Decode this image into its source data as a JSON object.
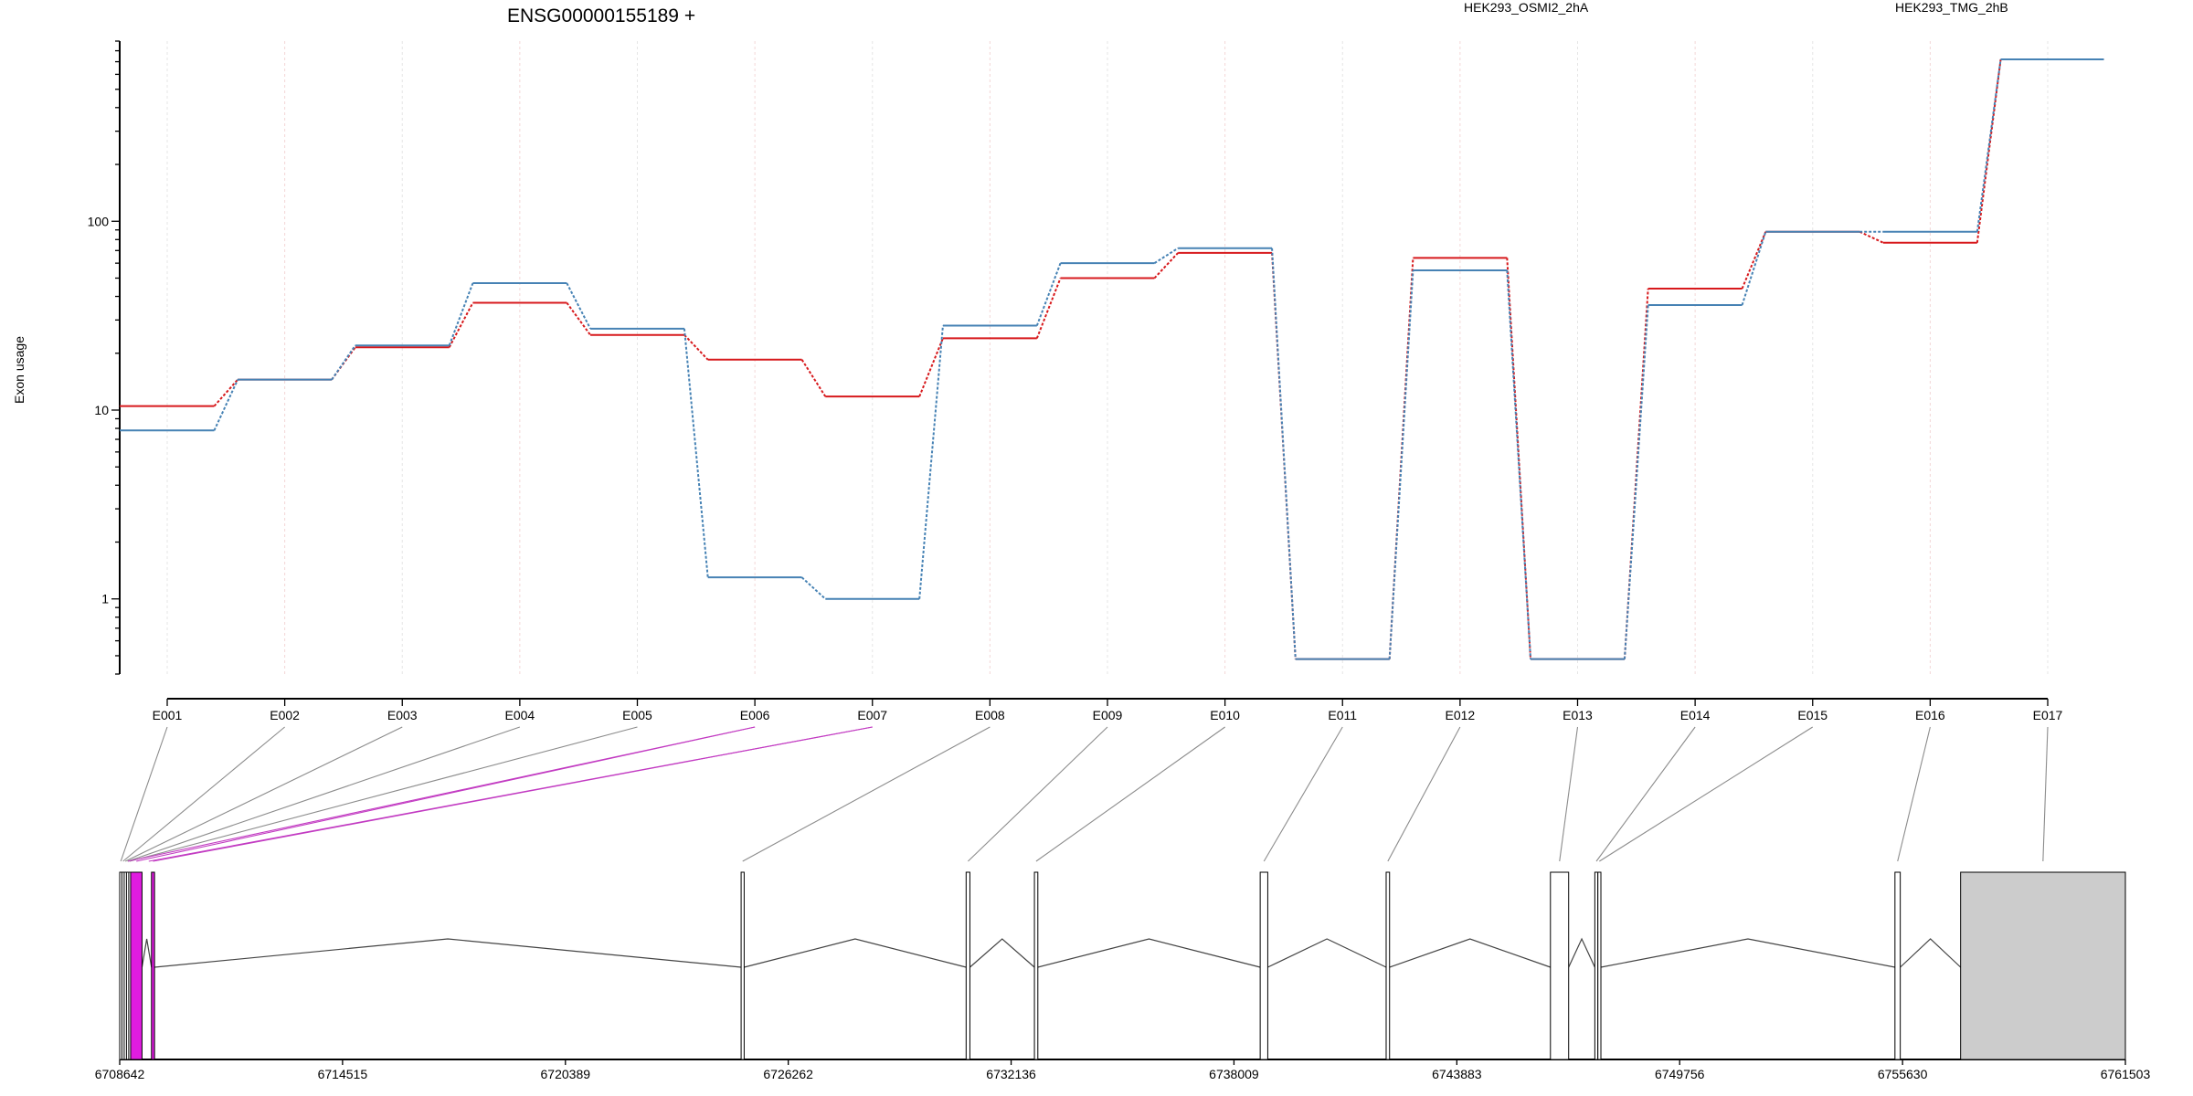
{
  "title": "ENSG00000155189 +",
  "chart_data": {
    "type": "line",
    "title": "ENSG00000155189 +",
    "ylabel": "Exon usage",
    "yscale": "log",
    "ylim": [
      0.4,
      900
    ],
    "yticks": [
      1,
      10,
      100
    ],
    "ytick_labels": [
      "1",
      "10",
      "100"
    ],
    "categories": [
      "E001",
      "E002",
      "E003",
      "E004",
      "E005",
      "E006",
      "E007",
      "E008",
      "E009",
      "E010",
      "E011",
      "E012",
      "E013",
      "E014",
      "E015",
      "E016",
      "E017"
    ],
    "legend_placement": "top",
    "series": [
      {
        "name": "HEK293_OSMI2_2hA",
        "color": "#d7191c",
        "values": [
          10.5,
          14.5,
          21.5,
          37,
          25,
          18.5,
          11.8,
          24,
          50,
          68,
          0.48,
          64,
          0.48,
          44,
          88,
          77,
          720
        ]
      },
      {
        "name": "HEK293_TMG_2hB",
        "color": "#4682b4",
        "values": [
          7.8,
          14.5,
          22,
          47,
          27,
          1.3,
          1.0,
          28,
          60,
          72,
          0.48,
          55,
          0.48,
          36,
          88,
          88,
          720
        ]
      }
    ],
    "gene_model": {
      "coord_range": [
        6708642,
        6761503
      ],
      "coord_ticks": [
        6708642,
        6714515,
        6720389,
        6726262,
        6732136,
        6738009,
        6743883,
        6749756,
        6755630,
        6761503
      ],
      "coord_tick_labels": [
        "6708642",
        "6714515",
        "6720389",
        "6726262",
        "6732136",
        "6738009",
        "6743883",
        "6749756",
        "6755630",
        "6761503"
      ],
      "highlight_color": "#e01ce0",
      "exons": [
        {
          "id": "E001",
          "start": 6708642,
          "end": 6708700,
          "highlight": false
        },
        {
          "id": "E002",
          "start": 6708700,
          "end": 6708760,
          "highlight": false
        },
        {
          "id": "E003",
          "start": 6708760,
          "end": 6708820,
          "highlight": false
        },
        {
          "id": "E004",
          "start": 6708820,
          "end": 6708880,
          "highlight": false
        },
        {
          "id": "E005",
          "start": 6708880,
          "end": 6708930,
          "highlight": false
        },
        {
          "id": "E006",
          "start": 6708930,
          "end": 6709230,
          "highlight": true
        },
        {
          "id": "E007",
          "start": 6709480,
          "end": 6709560,
          "highlight": true
        },
        {
          "id": "E008",
          "start": 6725020,
          "end": 6725100,
          "highlight": false
        },
        {
          "id": "E009",
          "start": 6730950,
          "end": 6731050,
          "highlight": false
        },
        {
          "id": "E010",
          "start": 6732750,
          "end": 6732840,
          "highlight": false
        },
        {
          "id": "E011",
          "start": 6738700,
          "end": 6738900,
          "highlight": false
        },
        {
          "id": "E012",
          "start": 6742020,
          "end": 6742110,
          "highlight": false
        },
        {
          "id": "E013",
          "start": 6746350,
          "end": 6746830,
          "highlight": false
        },
        {
          "id": "E014",
          "start": 6747520,
          "end": 6747600,
          "highlight": false
        },
        {
          "id": "E015",
          "start": 6747600,
          "end": 6747680,
          "highlight": false
        },
        {
          "id": "E016",
          "start": 6755430,
          "end": 6755570,
          "highlight": false
        },
        {
          "id": "E017",
          "start": 6757160,
          "end": 6761503,
          "highlight": false,
          "fill": "#cccccc"
        }
      ]
    }
  }
}
